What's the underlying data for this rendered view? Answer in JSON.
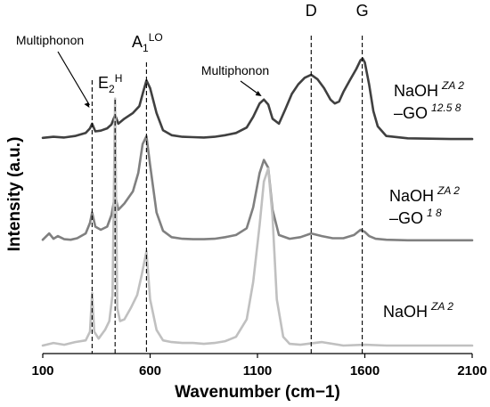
{
  "chart_data": {
    "type": "line",
    "title": "",
    "xlabel": "Wavenumber (cm−1)",
    "ylabel": "Intensity (a.u.)",
    "xlim": [
      100,
      2100
    ],
    "x_ticks": [
      "100",
      "600",
      "1100",
      "1600",
      "2100"
    ],
    "y_ticks": [],
    "grid": false,
    "legend": "labels beside each curve",
    "peak_markers": [
      {
        "label": "Multiphonon",
        "wavenumber": 330
      },
      {
        "label": "E2H",
        "main": "E",
        "sub": "2",
        "sup": "H",
        "wavenumber": 437
      },
      {
        "label": "A1LO",
        "main": "A",
        "sub": "1",
        "sup": "LO",
        "wavenumber": 583
      },
      {
        "label": "D",
        "wavenumber": 1350
      },
      {
        "label": "G",
        "wavenumber": 1588
      }
    ],
    "annotations": [
      {
        "text": "Multiphonon",
        "wavenumber": 1140
      }
    ],
    "series": [
      {
        "name": "NaOH ZA 2 –GO 12.5 8",
        "label_main": "NaOH",
        "label_sup": "ZA 2",
        "label_main2": "–GO",
        "label_sup2": "12.5 8",
        "color": "#404040",
        "x": [
          100,
          150,
          200,
          250,
          300,
          320,
          330,
          345,
          370,
          400,
          420,
          437,
          452,
          480,
          520,
          550,
          570,
          583,
          600,
          630,
          660,
          700,
          750,
          800,
          850,
          900,
          950,
          1000,
          1050,
          1080,
          1110,
          1130,
          1150,
          1170,
          1200,
          1230,
          1260,
          1290,
          1320,
          1350,
          1380,
          1410,
          1440,
          1460,
          1480,
          1500,
          1530,
          1560,
          1580,
          1590,
          1600,
          1620,
          1640,
          1660,
          1700,
          1800,
          1900,
          2000,
          2100
        ],
        "y": [
          0.05,
          0.08,
          0.06,
          0.1,
          0.18,
          0.3,
          0.42,
          0.22,
          0.24,
          0.3,
          0.4,
          0.65,
          0.42,
          0.55,
          0.7,
          0.88,
          1.3,
          1.55,
          1.35,
          0.7,
          0.25,
          0.12,
          0.08,
          0.07,
          0.06,
          0.08,
          0.12,
          0.18,
          0.32,
          0.6,
          0.95,
          1.05,
          0.92,
          0.55,
          0.42,
          0.8,
          1.2,
          1.45,
          1.62,
          1.7,
          1.58,
          1.35,
          1.05,
          0.95,
          1.0,
          1.25,
          1.55,
          1.85,
          2.08,
          2.12,
          2.02,
          1.45,
          0.75,
          0.35,
          0.1,
          0.04,
          0.03,
          0.02,
          0.02
        ]
      },
      {
        "name": "NaOH ZA 2 –GO 1 8",
        "label_main": "NaOH",
        "label_sup": "ZA 2",
        "label_main2": "–GO",
        "label_sup2": "1 8",
        "color": "#808080",
        "x": [
          100,
          130,
          150,
          170,
          200,
          230,
          260,
          300,
          320,
          330,
          345,
          370,
          400,
          420,
          437,
          452,
          480,
          520,
          545,
          565,
          583,
          600,
          630,
          660,
          700,
          750,
          800,
          850,
          900,
          950,
          1000,
          1050,
          1080,
          1110,
          1130,
          1150,
          1170,
          1200,
          1250,
          1300,
          1350,
          1400,
          1450,
          1500,
          1550,
          1580,
          1600,
          1620,
          1650,
          1700,
          1800,
          1900,
          2000,
          2100
        ],
        "y": [
          0.03,
          0.15,
          0.05,
          0.1,
          0.04,
          0.03,
          0.06,
          0.15,
          0.35,
          0.55,
          0.28,
          0.22,
          0.28,
          0.5,
          0.88,
          0.6,
          0.72,
          0.95,
          1.3,
          1.85,
          2.0,
          1.45,
          0.55,
          0.2,
          0.08,
          0.05,
          0.04,
          0.04,
          0.05,
          0.08,
          0.12,
          0.25,
          0.65,
          1.3,
          1.55,
          1.4,
          0.6,
          0.12,
          0.05,
          0.08,
          0.15,
          0.1,
          0.06,
          0.06,
          0.12,
          0.22,
          0.18,
          0.1,
          0.05,
          0.03,
          0.02,
          0.02,
          0.02,
          0.02
        ]
      },
      {
        "name": "NaOH ZA 2",
        "label_main": "NaOH",
        "label_sup": "ZA 2",
        "label_main2": "",
        "label_sup2": "",
        "color": "#c0c0c0",
        "x": [
          100,
          150,
          200,
          250,
          300,
          320,
          330,
          340,
          360,
          390,
          410,
          425,
          437,
          447,
          460,
          480,
          510,
          540,
          560,
          583,
          600,
          630,
          660,
          700,
          750,
          800,
          850,
          900,
          950,
          1000,
          1050,
          1080,
          1110,
          1130,
          1150,
          1170,
          1190,
          1220,
          1250,
          1300,
          1400,
          1500,
          1600,
          1700,
          1800,
          1900,
          2000,
          2100
        ],
        "y": [
          0.02,
          0.05,
          0.03,
          0.06,
          0.08,
          0.18,
          0.62,
          0.18,
          0.1,
          0.2,
          0.3,
          0.6,
          2.85,
          0.45,
          0.3,
          0.32,
          0.45,
          0.6,
          0.82,
          1.1,
          0.55,
          0.2,
          0.08,
          0.06,
          0.05,
          0.05,
          0.04,
          0.05,
          0.07,
          0.12,
          0.32,
          0.75,
          1.4,
          1.9,
          2.05,
          1.5,
          0.55,
          0.12,
          0.04,
          0.03,
          0.06,
          0.02,
          0.03,
          0.02,
          0.02,
          0.02,
          0.02,
          0.02
        ]
      }
    ]
  }
}
